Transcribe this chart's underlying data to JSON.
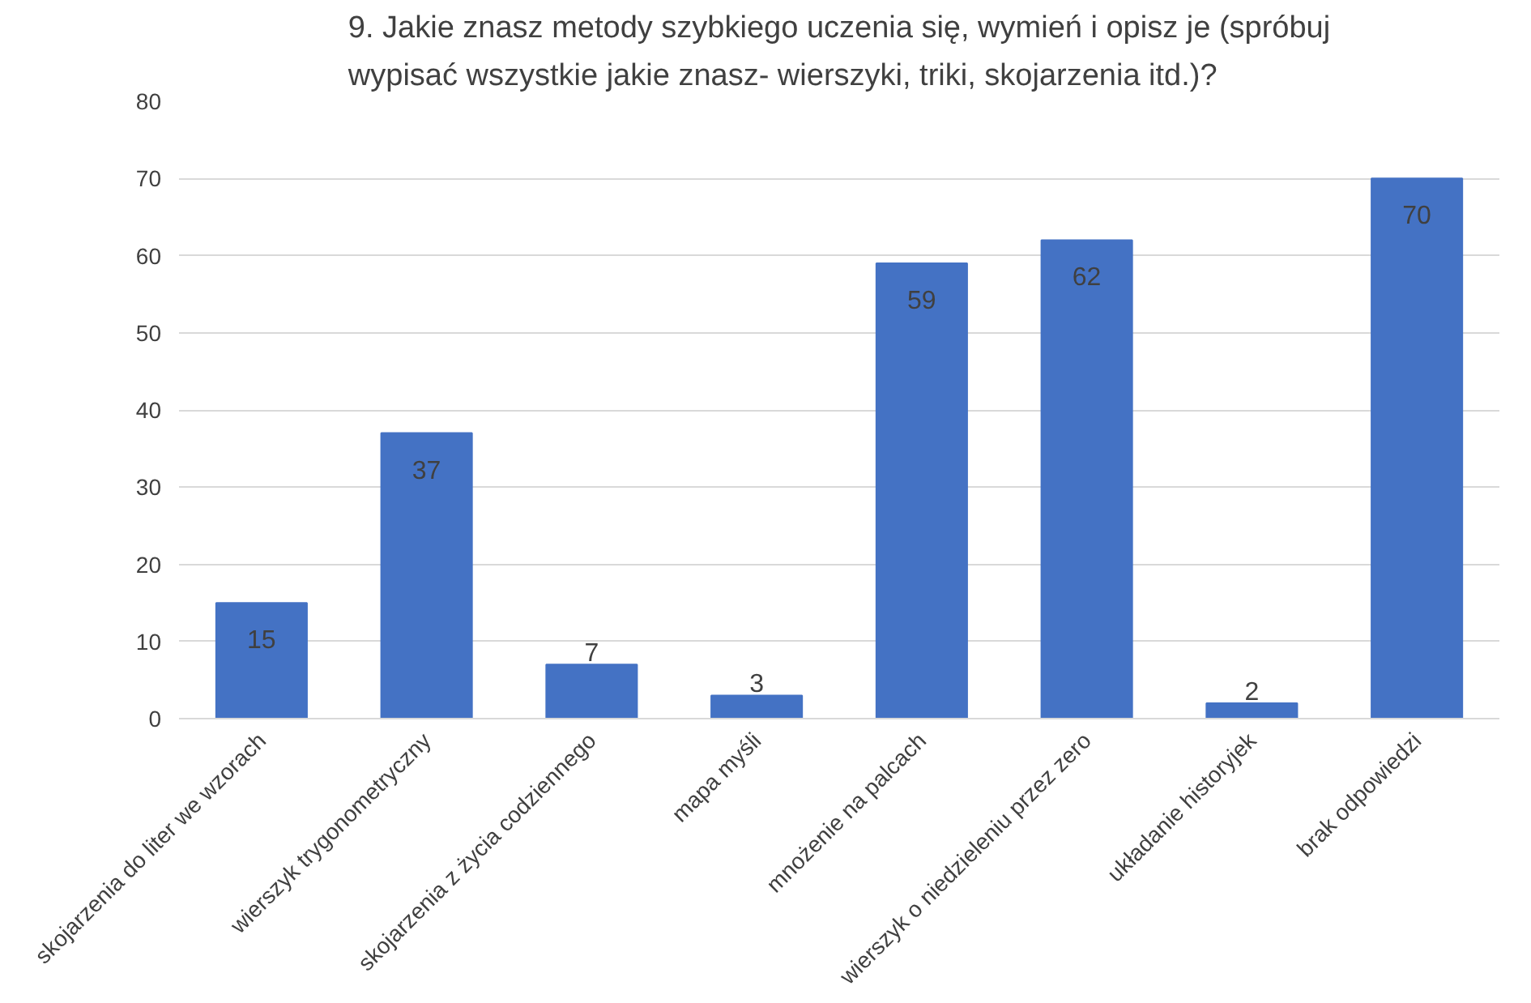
{
  "chart_data": {
    "type": "bar",
    "title": "9. Jakie znasz metody szybkiego uczenia się, wymień i opisz je (spróbuj wypisać wszystkie jakie znasz- wierszyki, triki, skojarzenia itd.)?",
    "categories": [
      "skojarzenia do liter we wzorach",
      "wierszyk trygonometryczny",
      "skojarzenia z życia codziennego",
      "mapa myśli",
      "mnożenie na palcach",
      "wierszyk o niedzieleniu przez zero",
      "układanie historyjek",
      "brak odpowiedzi"
    ],
    "values": [
      15,
      37,
      7,
      3,
      59,
      62,
      2,
      70
    ],
    "color": "#4472c4",
    "ylim": [
      0,
      80
    ],
    "yticks": [
      0,
      10,
      20,
      30,
      40,
      50,
      60,
      70,
      80
    ],
    "grid": "y",
    "data_labels": true
  }
}
